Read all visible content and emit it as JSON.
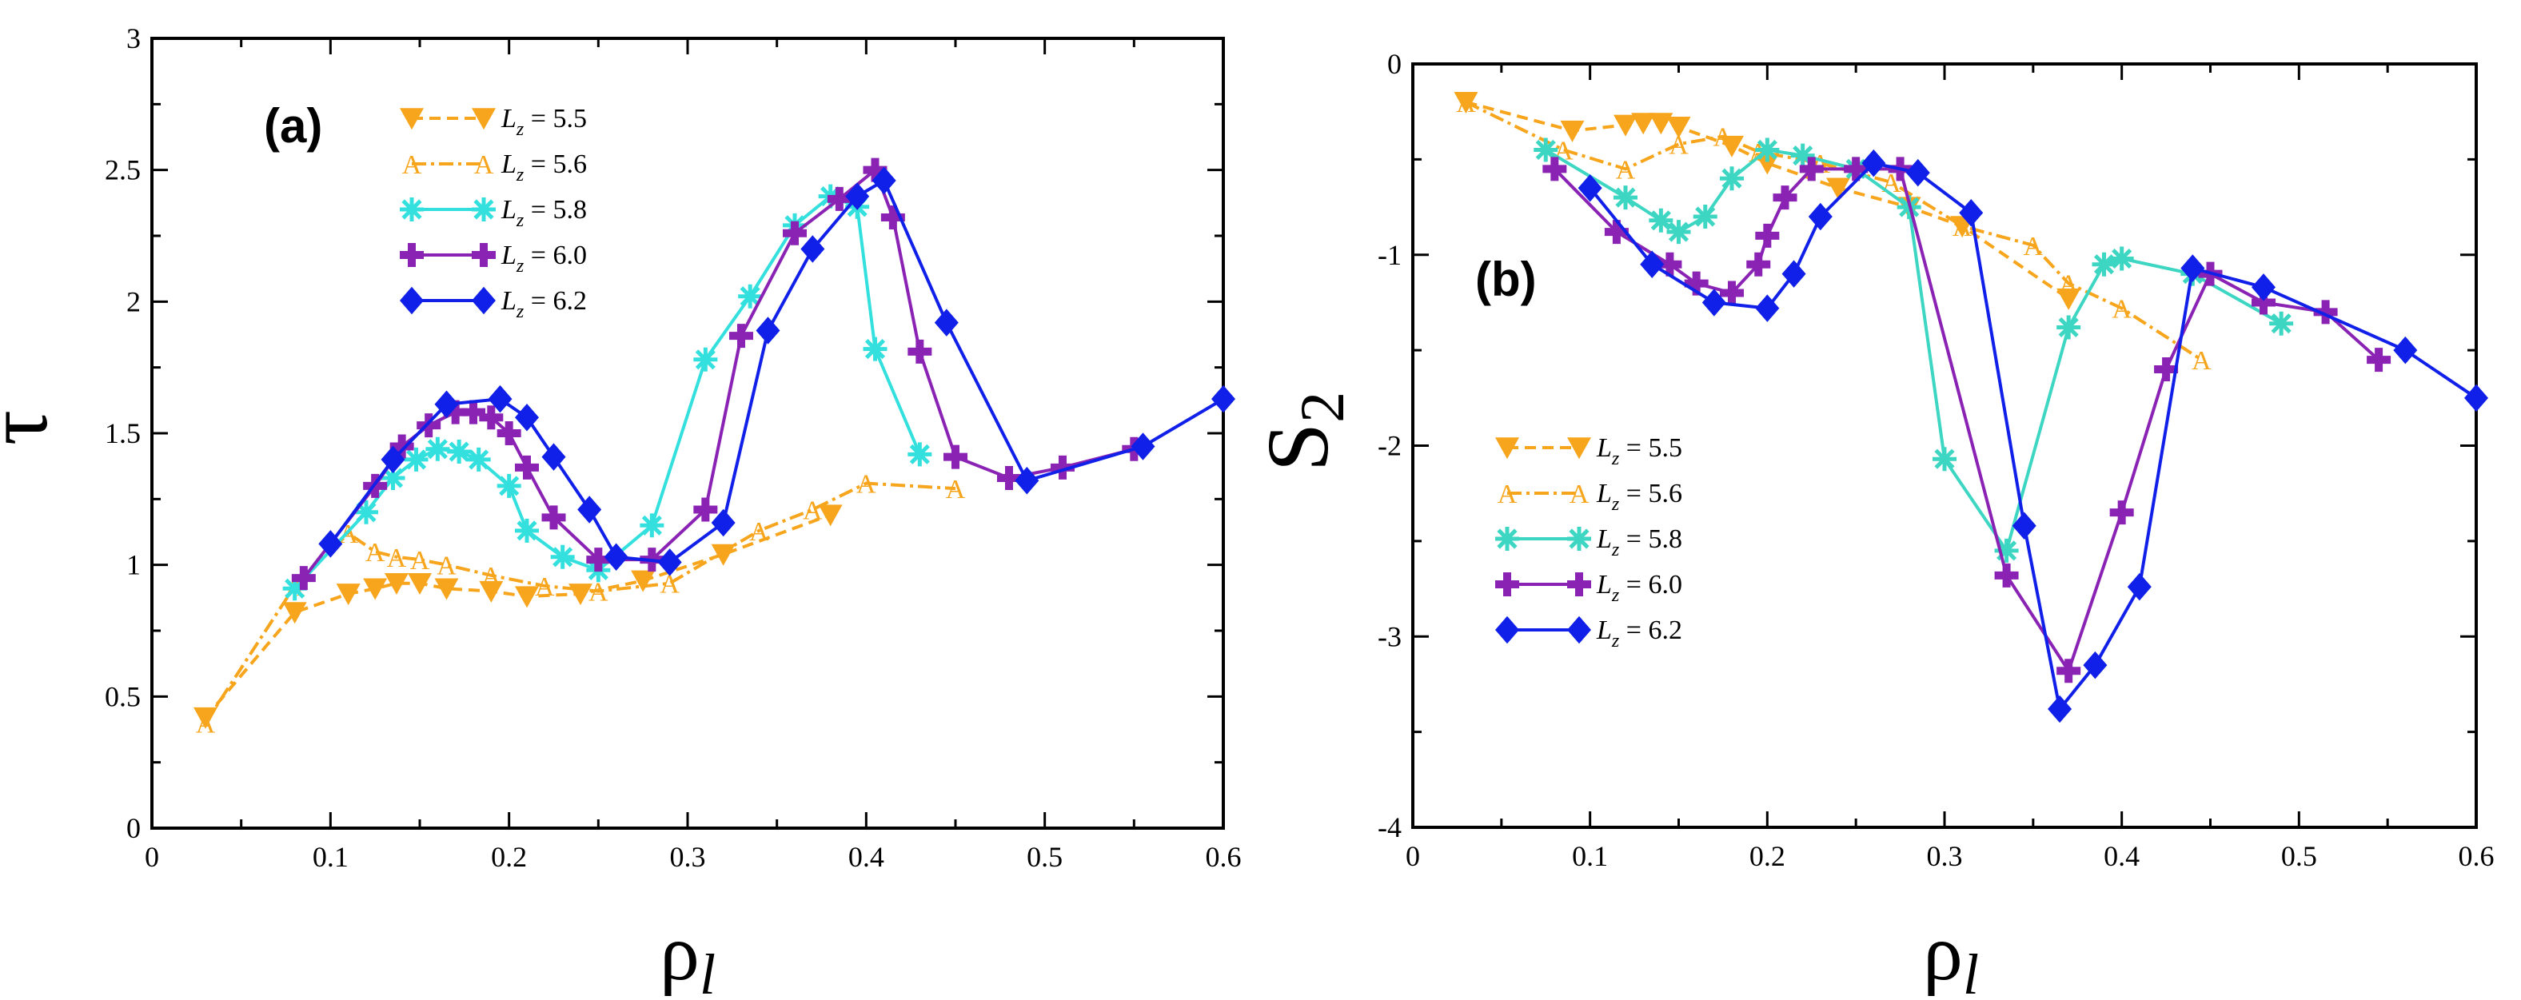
{
  "chart_data": [
    {
      "type": "line",
      "panel_label": "(a)",
      "xlabel": "ρ",
      "xlabel_sub": "l",
      "ylabel": "τ",
      "ylabel_sub": "",
      "xlim": [
        0,
        0.6
      ],
      "ylim": [
        0,
        3
      ],
      "xticks": [
        "0",
        "0.1",
        "0.2",
        "0.3",
        "0.4",
        "0.5",
        "0.6"
      ],
      "yticks": [
        "0",
        "0.5",
        "1",
        "1.5",
        "2",
        "2.5",
        "3"
      ],
      "legend_position": "top-center",
      "grid": false,
      "series": [
        {
          "name": "L",
          "name_sub": "z",
          "name_value": " = 5.5",
          "color": "#f7a51c",
          "dash": "14,8",
          "marker": "triangle-down",
          "x": [
            0.03,
            0.08,
            0.11,
            0.125,
            0.137,
            0.15,
            0.165,
            0.19,
            0.21,
            0.24,
            0.275,
            0.32,
            0.38
          ],
          "y": [
            0.42,
            0.82,
            0.89,
            0.91,
            0.93,
            0.93,
            0.91,
            0.9,
            0.88,
            0.89,
            0.94,
            1.04,
            1.19
          ]
        },
        {
          "name": "L",
          "name_sub": "z",
          "name_value": " = 5.6",
          "color": "#f7a51c",
          "dash": "18,6,4,6",
          "marker": "A",
          "x": [
            0.03,
            0.08,
            0.11,
            0.125,
            0.137,
            0.15,
            0.165,
            0.19,
            0.22,
            0.25,
            0.29,
            0.34,
            0.37,
            0.4,
            0.45
          ],
          "y": [
            0.4,
            0.92,
            1.12,
            1.05,
            1.03,
            1.02,
            1.0,
            0.96,
            0.92,
            0.9,
            0.93,
            1.13,
            1.21,
            1.31,
            1.29
          ]
        },
        {
          "name": "L",
          "name_sub": "z",
          "name_value": " = 5.8",
          "color": "#33e0de",
          "dash": "",
          "marker": "asterisk",
          "x": [
            0.08,
            0.12,
            0.135,
            0.148,
            0.16,
            0.172,
            0.183,
            0.2,
            0.21,
            0.23,
            0.25,
            0.28,
            0.31,
            0.335,
            0.36,
            0.38,
            0.395,
            0.405,
            0.43
          ],
          "y": [
            0.91,
            1.2,
            1.33,
            1.4,
            1.44,
            1.43,
            1.4,
            1.3,
            1.13,
            1.03,
            0.98,
            1.15,
            1.78,
            2.02,
            2.29,
            2.4,
            2.36,
            1.82,
            1.42
          ]
        },
        {
          "name": "L",
          "name_sub": "z",
          "name_value": " = 6.0",
          "color": "#8a22b4",
          "dash": "",
          "marker": "plus",
          "x": [
            0.085,
            0.125,
            0.14,
            0.155,
            0.17,
            0.18,
            0.19,
            0.2,
            0.21,
            0.225,
            0.25,
            0.28,
            0.31,
            0.33,
            0.36,
            0.385,
            0.405,
            0.415,
            0.43,
            0.45,
            0.48,
            0.51,
            0.55
          ],
          "y": [
            0.95,
            1.3,
            1.45,
            1.53,
            1.58,
            1.58,
            1.56,
            1.5,
            1.37,
            1.18,
            1.02,
            1.02,
            1.21,
            1.87,
            2.26,
            2.39,
            2.5,
            2.32,
            1.81,
            1.41,
            1.33,
            1.37,
            1.44
          ]
        },
        {
          "name": "L",
          "name_sub": "z",
          "name_value": " = 6.2",
          "color": "#1020e8",
          "dash": "",
          "marker": "diamond",
          "x": [
            0.1,
            0.135,
            0.165,
            0.195,
            0.21,
            0.225,
            0.245,
            0.26,
            0.29,
            0.32,
            0.345,
            0.37,
            0.395,
            0.41,
            0.445,
            0.49,
            0.555,
            0.6
          ],
          "y": [
            1.08,
            1.4,
            1.61,
            1.63,
            1.56,
            1.41,
            1.21,
            1.03,
            1.01,
            1.16,
            1.89,
            2.2,
            2.4,
            2.46,
            1.92,
            1.32,
            1.45,
            1.63
          ]
        }
      ]
    },
    {
      "type": "line",
      "panel_label": "(b)",
      "xlabel": "ρ",
      "xlabel_sub": "l",
      "ylabel": "S",
      "ylabel_sub": "2",
      "xlim": [
        0,
        0.6
      ],
      "ylim": [
        -4,
        0
      ],
      "xticks": [
        "0",
        "0.1",
        "0.2",
        "0.3",
        "0.4",
        "0.5",
        "0.6"
      ],
      "yticks": [
        "-4",
        "-3",
        "-2",
        "-1",
        "0"
      ],
      "legend_position": "center-left",
      "grid": false,
      "series": [
        {
          "name": "L",
          "name_sub": "z",
          "name_value": " = 5.5",
          "color": "#f7a51c",
          "dash": "14,8",
          "marker": "triangle-down",
          "x": [
            0.03,
            0.09,
            0.12,
            0.13,
            0.14,
            0.15,
            0.18,
            0.2,
            0.24,
            0.28,
            0.31,
            0.37
          ],
          "y": [
            -0.2,
            -0.35,
            -0.32,
            -0.31,
            -0.31,
            -0.33,
            -0.43,
            -0.52,
            -0.65,
            -0.75,
            -0.85,
            -1.23
          ]
        },
        {
          "name": "L",
          "name_sub": "z",
          "name_value": " = 5.6",
          "color": "#f7a51c",
          "dash": "18,6,4,6",
          "marker": "A",
          "x": [
            0.03,
            0.085,
            0.12,
            0.15,
            0.175,
            0.195,
            0.23,
            0.27,
            0.31,
            0.35,
            0.37,
            0.4,
            0.445
          ],
          "y": [
            -0.2,
            -0.45,
            -0.55,
            -0.42,
            -0.38,
            -0.46,
            -0.52,
            -0.62,
            -0.85,
            -0.95,
            -1.15,
            -1.28,
            -1.55
          ]
        },
        {
          "name": "L",
          "name_sub": "z",
          "name_value": " = 5.8",
          "color": "#3dd6c2",
          "dash": "",
          "marker": "asterisk",
          "x": [
            0.075,
            0.12,
            0.14,
            0.15,
            0.165,
            0.18,
            0.2,
            0.22,
            0.25,
            0.28,
            0.3,
            0.335,
            0.37,
            0.39,
            0.4,
            0.44,
            0.49
          ],
          "y": [
            -0.45,
            -0.7,
            -0.82,
            -0.88,
            -0.8,
            -0.6,
            -0.45,
            -0.48,
            -0.55,
            -0.75,
            -2.07,
            -2.55,
            -1.38,
            -1.05,
            -1.02,
            -1.1,
            -1.36
          ]
        },
        {
          "name": "L",
          "name_sub": "z",
          "name_value": " = 6.0",
          "color": "#8a22b4",
          "dash": "",
          "marker": "plus",
          "x": [
            0.08,
            0.115,
            0.145,
            0.16,
            0.18,
            0.195,
            0.2,
            0.21,
            0.225,
            0.25,
            0.275,
            0.335,
            0.37,
            0.4,
            0.425,
            0.45,
            0.48,
            0.515,
            0.545
          ],
          "y": [
            -0.55,
            -0.88,
            -1.05,
            -1.15,
            -1.2,
            -1.05,
            -0.9,
            -0.7,
            -0.55,
            -0.55,
            -0.55,
            -2.68,
            -3.18,
            -2.35,
            -1.6,
            -1.1,
            -1.25,
            -1.3,
            -1.55
          ]
        },
        {
          "name": "L",
          "name_sub": "z",
          "name_value": " = 6.2",
          "color": "#1020e8",
          "dash": "",
          "marker": "diamond",
          "x": [
            0.1,
            0.135,
            0.17,
            0.2,
            0.215,
            0.23,
            0.26,
            0.285,
            0.315,
            0.345,
            0.365,
            0.385,
            0.41,
            0.44,
            0.48,
            0.56,
            0.6
          ],
          "y": [
            -0.65,
            -1.05,
            -1.25,
            -1.28,
            -1.1,
            -0.8,
            -0.52,
            -0.57,
            -0.78,
            -2.42,
            -3.38,
            -3.15,
            -2.74,
            -1.07,
            -1.17,
            -1.5,
            -1.75
          ]
        }
      ]
    }
  ]
}
